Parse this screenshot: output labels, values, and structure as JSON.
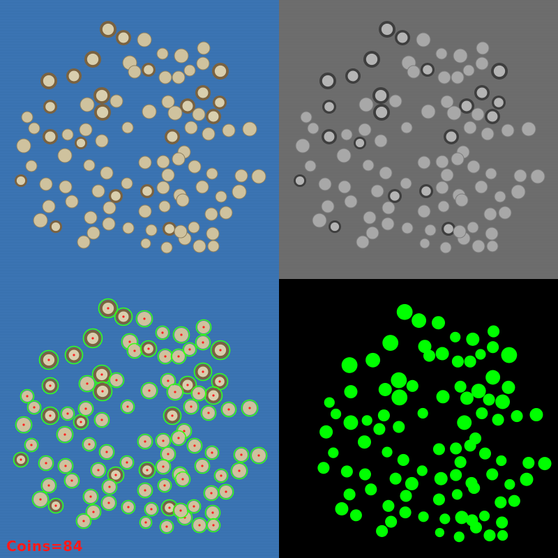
{
  "panels": {
    "original": "original-photo",
    "grayscale": "grayscale",
    "detected": "detected-overlay",
    "mask": "binary-mask"
  },
  "result": {
    "count_label": "Coins=84"
  },
  "colors": {
    "background_blue": "#3b74b3",
    "background_gray": "#6d6d6d",
    "mask_fill": "#00ff00",
    "outline": "#39ff14",
    "center_dot": "#ff2020",
    "label": "#ff1a1a"
  }
}
